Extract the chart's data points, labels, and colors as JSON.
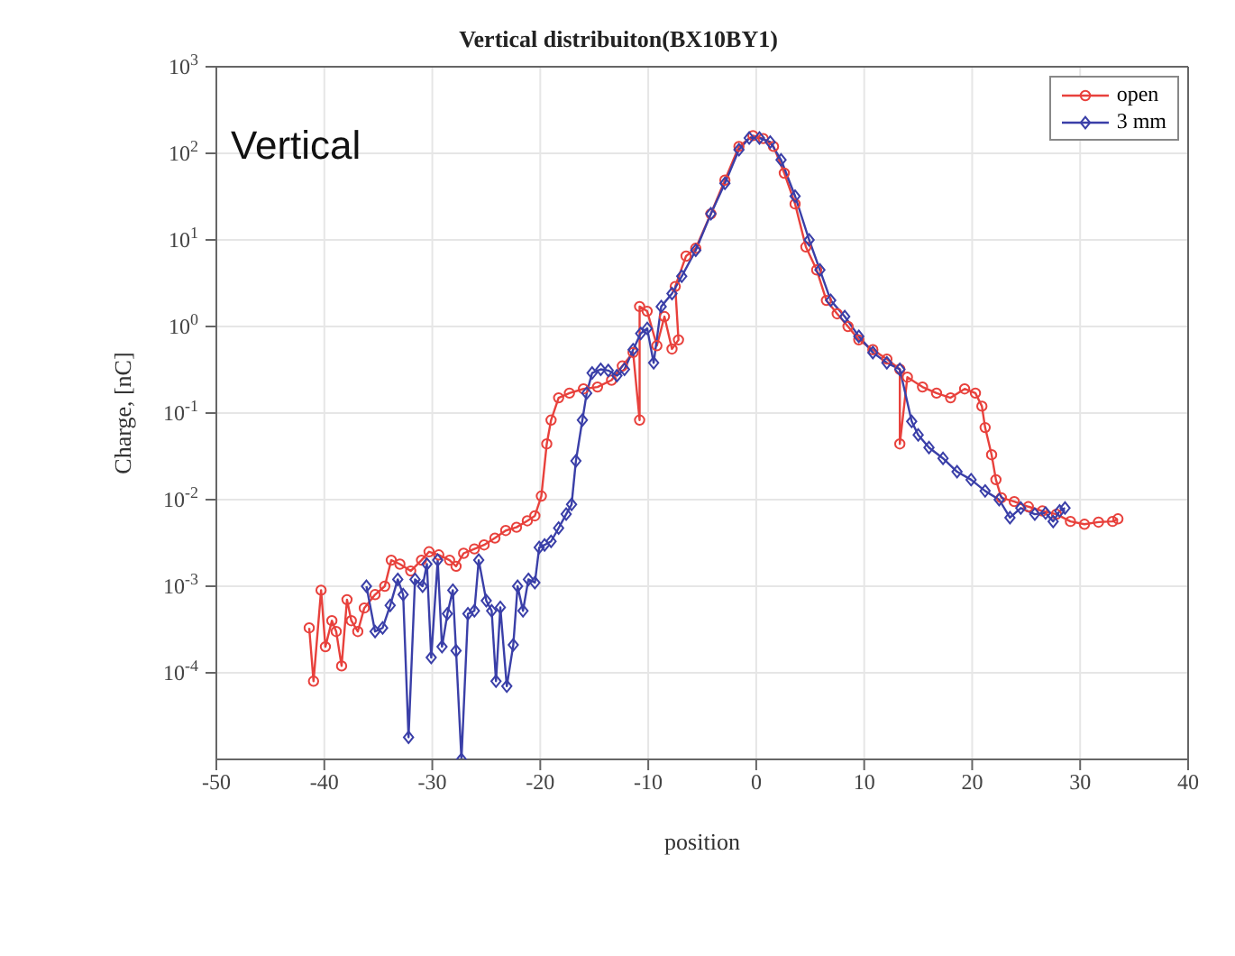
{
  "chart_data": {
    "type": "line",
    "title": "Vertical distribuiton(BX10BY1)",
    "xlabel": "position",
    "ylabel": "Charge, [nC]",
    "annotations": [
      "Vertical"
    ],
    "log": "y",
    "grid": true,
    "legend": "top right",
    "xlim": [
      -50,
      40
    ],
    "xticks": [
      -50,
      -40,
      -30,
      -20,
      -10,
      0,
      10,
      20,
      30,
      40
    ],
    "ylim": [
      1e-05,
      1000
    ],
    "yticks": [
      {
        "value": 0.0001,
        "label": "10$^{-4}$"
      },
      {
        "value": 0.001,
        "label": "10$^{-3}$"
      },
      {
        "value": 0.01,
        "label": "10$^{-2}$"
      },
      {
        "value": 0.1,
        "label": "10$^{-1}$"
      },
      {
        "value": 1,
        "label": "10$^{0}$"
      },
      {
        "value": 10,
        "label": "10$^{1}$"
      },
      {
        "value": 100,
        "label": "10$^{2}$"
      },
      {
        "value": 1000,
        "label": "10$^{3}$"
      }
    ],
    "series": [
      {
        "name": "open",
        "color": "#e8413c",
        "marker": "circle",
        "x": [
          -41.4,
          -41.0,
          -40.3,
          -39.9,
          -39.3,
          -38.9,
          -38.4,
          -37.9,
          -37.5,
          -36.9,
          -36.3,
          -35.3,
          -34.4,
          -33.8,
          -33.0,
          -32.0,
          -31.0,
          -30.3,
          -29.4,
          -28.4,
          -27.8,
          -27.1,
          -26.1,
          -25.2,
          -24.2,
          -23.2,
          -22.2,
          -21.2,
          -20.5,
          -19.9,
          -19.4,
          -19.0,
          -18.3,
          -17.3,
          -16.0,
          -14.7,
          -13.4,
          -12.4,
          -11.4,
          -10.8,
          -10.8,
          -10.1,
          -9.2,
          -8.5,
          -7.8,
          -7.2,
          -7.5,
          -6.5,
          -5.6,
          -4.2,
          -2.9,
          -1.6,
          -0.3,
          0.65,
          1.6,
          2.6,
          3.6,
          4.6,
          5.6,
          6.5,
          7.5,
          8.5,
          9.5,
          10.8,
          12.1,
          13.3,
          13.3,
          14.0,
          15.4,
          16.7,
          18.0,
          19.3,
          20.3,
          20.9,
          21.2,
          21.8,
          22.2,
          22.7,
          23.9,
          25.2,
          26.5,
          27.8,
          29.1,
          30.4,
          31.7,
          33.0,
          33.5
        ],
        "values": [
          0.00033,
          8e-05,
          0.0009,
          0.0002,
          0.0004,
          0.0003,
          0.00012,
          0.0007,
          0.0004,
          0.0003,
          0.00056,
          0.0008,
          0.001,
          0.002,
          0.0018,
          0.0015,
          0.002,
          0.0025,
          0.0023,
          0.002,
          0.0017,
          0.0024,
          0.0027,
          0.003,
          0.0036,
          0.0044,
          0.0048,
          0.0057,
          0.0065,
          0.011,
          0.044,
          0.083,
          0.15,
          0.17,
          0.19,
          0.2,
          0.24,
          0.35,
          0.5,
          0.083,
          1.7,
          1.5,
          0.6,
          1.3,
          0.55,
          0.7,
          2.9,
          6.5,
          8,
          20,
          49,
          120,
          160,
          148,
          120,
          59,
          26,
          8.3,
          4.5,
          2,
          1.4,
          1,
          0.7,
          0.54,
          0.42,
          0.32,
          0.044,
          0.26,
          0.2,
          0.17,
          0.15,
          0.19,
          0.17,
          0.12,
          0.068,
          0.033,
          0.017,
          0.0105,
          0.0095,
          0.0083,
          0.0074,
          0.0068,
          0.0056,
          0.0052,
          0.0055,
          0.0056,
          0.006
        ]
      },
      {
        "name": "3 mm",
        "color": "#3a3fa8",
        "marker": "diamond",
        "x": [
          -36.1,
          -35.3,
          -34.6,
          -33.9,
          -33.2,
          -32.7,
          -32.2,
          -31.6,
          -30.9,
          -30.5,
          -30.1,
          -29.5,
          -29.1,
          -28.6,
          -28.1,
          -27.8,
          -27.3,
          -26.7,
          -26.1,
          -25.7,
          -25.0,
          -24.5,
          -24.1,
          -23.7,
          -23.1,
          -22.5,
          -22.1,
          -21.6,
          -21.1,
          -20.5,
          -20.1,
          -19.6,
          -19.0,
          -18.3,
          -17.6,
          -17.1,
          -16.7,
          -16.1,
          -15.7,
          -15.2,
          -14.4,
          -13.7,
          -12.9,
          -12.2,
          -11.4,
          -10.7,
          -10.1,
          -9.5,
          -8.8,
          -7.8,
          -6.9,
          -5.6,
          -4.2,
          -2.9,
          -1.6,
          -0.65,
          0.3,
          1.3,
          2.3,
          3.6,
          4.9,
          5.9,
          6.9,
          8.2,
          9.5,
          10.8,
          12.1,
          13.3,
          14.4,
          15.0,
          16.0,
          17.3,
          18.6,
          19.9,
          21.2,
          22.5,
          23.5,
          24.5,
          25.8,
          26.8,
          27.5,
          28.1,
          28.6
        ],
        "values": [
          0.001,
          0.0003,
          0.00033,
          0.0006,
          0.0012,
          0.0008,
          1.8e-05,
          0.0012,
          0.001,
          0.0018,
          0.00015,
          0.002,
          0.0002,
          0.00048,
          0.0009,
          0.00018,
          1e-05,
          0.00048,
          0.00052,
          0.002,
          0.00068,
          0.00052,
          8e-05,
          0.00057,
          7e-05,
          0.00021,
          0.001,
          0.00052,
          0.0012,
          0.0011,
          0.0028,
          0.003,
          0.0033,
          0.0047,
          0.0068,
          0.0088,
          0.028,
          0.083,
          0.17,
          0.29,
          0.32,
          0.31,
          0.27,
          0.32,
          0.54,
          0.83,
          0.95,
          0.38,
          1.7,
          2.4,
          3.8,
          7.6,
          20,
          45,
          110,
          150,
          150,
          135,
          84,
          32,
          10,
          4.5,
          2,
          1.3,
          0.77,
          0.5,
          0.38,
          0.32,
          0.08,
          0.056,
          0.04,
          0.03,
          0.021,
          0.017,
          0.0126,
          0.01,
          0.0062,
          0.008,
          0.0068,
          0.007,
          0.0056,
          0.0074,
          0.008
        ]
      }
    ]
  }
}
